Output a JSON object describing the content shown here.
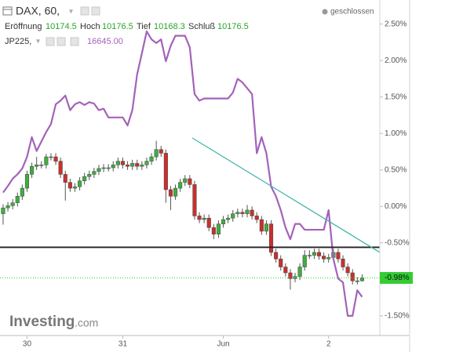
{
  "header": {
    "symbol": "DAX, 60,",
    "status": "geschlossen",
    "ohlc": [
      {
        "label": "Eröffnung",
        "value": "10174.5"
      },
      {
        "label": "Hoch",
        "value": "10176.5"
      },
      {
        "label": "Tief",
        "value": "10168.3"
      },
      {
        "label": "Schluß",
        "value": "10176.5"
      }
    ],
    "compare": {
      "symbol": "JP225,",
      "value": "16645.00"
    }
  },
  "logo": {
    "name": "Investing",
    "domain": ".com"
  },
  "chart_data": {
    "type": "candlestick",
    "xlim": [
      -0.65,
      78.7
    ],
    "xticks": [
      {
        "value": 5,
        "label": "30"
      },
      {
        "value": 25,
        "label": "31"
      },
      {
        "value": 46,
        "label": "Jun"
      },
      {
        "value": 68,
        "label": "2"
      }
    ],
    "ylim": [
      -1.77,
      2.83
    ],
    "yticks": [
      {
        "value": 2.5,
        "label": "2.50%"
      },
      {
        "value": 2.0,
        "label": "2.00%"
      },
      {
        "value": 1.5,
        "label": "1.50%"
      },
      {
        "value": 1.0,
        "label": "1.00%"
      },
      {
        "value": 0.5,
        "label": "0.50%"
      },
      {
        "value": 0.0,
        "label": "0.00%"
      },
      {
        "value": -0.5,
        "label": "-0.50%"
      },
      {
        "value": -1.5,
        "label": "-1.50%"
      }
    ],
    "grid": false,
    "up_color": "#3fae3f",
    "down_color": "#c9302c",
    "open": [
      -0.1,
      -0.02,
      0.01,
      0.05,
      0.14,
      0.25,
      0.44,
      0.55,
      0.57,
      0.57,
      0.68,
      0.68,
      0.62,
      0.44,
      0.33,
      0.25,
      0.27,
      0.35,
      0.41,
      0.44,
      0.48,
      0.52,
      0.53,
      0.53,
      0.57,
      0.62,
      0.57,
      0.55,
      0.59,
      0.55,
      0.57,
      0.62,
      0.68,
      0.78,
      0.73,
      0.23,
      0.14,
      0.25,
      0.33,
      0.38,
      0.3,
      -0.13,
      -0.18,
      -0.16,
      -0.29,
      -0.38,
      -0.24,
      -0.18,
      -0.16,
      -0.1,
      -0.08,
      -0.1,
      -0.05,
      -0.13,
      -0.18,
      -0.34,
      -0.24,
      -0.63,
      -0.72,
      -0.83,
      -0.91,
      -0.99,
      -0.96,
      -0.83,
      -0.67,
      -0.67,
      -0.63,
      -0.68,
      -0.72,
      -0.7,
      -0.63,
      -0.72,
      -0.83,
      -0.91,
      -1.02,
      -1.02
    ],
    "high": [
      0.03,
      0.06,
      0.1,
      0.19,
      0.3,
      0.49,
      0.6,
      0.68,
      0.62,
      0.72,
      0.73,
      0.73,
      0.67,
      0.49,
      0.38,
      0.32,
      0.4,
      0.46,
      0.49,
      0.53,
      0.57,
      0.58,
      0.58,
      0.62,
      0.67,
      0.67,
      0.62,
      0.64,
      0.64,
      0.62,
      0.67,
      0.73,
      0.9,
      0.83,
      0.78,
      0.28,
      0.3,
      0.38,
      0.43,
      0.43,
      0.35,
      -0.08,
      -0.11,
      -0.11,
      -0.24,
      -0.19,
      -0.13,
      -0.11,
      -0.05,
      -0.03,
      -0.03,
      0.02,
      0.0,
      -0.08,
      -0.13,
      -0.19,
      -0.19,
      -0.58,
      -0.67,
      -0.78,
      -0.86,
      -0.91,
      -0.78,
      -0.6,
      -0.6,
      -0.58,
      -0.58,
      -0.63,
      -0.65,
      -0.58,
      -0.58,
      -0.67,
      -0.78,
      -0.86,
      -0.97,
      -0.93
    ],
    "low": [
      -0.25,
      -0.07,
      -0.04,
      0.0,
      0.09,
      0.2,
      0.39,
      0.5,
      0.52,
      0.52,
      0.63,
      0.57,
      0.39,
      0.08,
      0.2,
      0.2,
      0.22,
      0.3,
      0.36,
      0.39,
      0.43,
      0.47,
      0.48,
      0.48,
      0.52,
      0.52,
      0.5,
      0.5,
      0.5,
      0.5,
      0.52,
      0.57,
      0.63,
      0.68,
      0.05,
      -0.05,
      0.09,
      0.2,
      0.28,
      0.25,
      -0.18,
      -0.23,
      -0.23,
      -0.34,
      -0.45,
      -0.43,
      -0.29,
      -0.23,
      -0.21,
      -0.15,
      -0.15,
      -0.15,
      -0.18,
      -0.23,
      -0.39,
      -0.39,
      -0.68,
      -0.77,
      -0.88,
      -0.96,
      -1.14,
      -1.04,
      -1.01,
      -0.88,
      -0.72,
      -0.72,
      -0.73,
      -0.77,
      -0.77,
      -0.75,
      -0.77,
      -0.88,
      -0.96,
      -1.07,
      -1.07,
      -1.03
    ],
    "close": [
      -0.02,
      0.01,
      0.05,
      0.14,
      0.25,
      0.44,
      0.55,
      0.57,
      0.57,
      0.68,
      0.68,
      0.62,
      0.44,
      0.33,
      0.25,
      0.27,
      0.35,
      0.41,
      0.44,
      0.48,
      0.52,
      0.53,
      0.53,
      0.57,
      0.62,
      0.57,
      0.55,
      0.59,
      0.55,
      0.57,
      0.62,
      0.68,
      0.78,
      0.73,
      0.23,
      0.14,
      0.25,
      0.33,
      0.38,
      0.3,
      -0.13,
      -0.18,
      -0.16,
      -0.29,
      -0.38,
      -0.24,
      -0.18,
      -0.16,
      -0.1,
      -0.08,
      -0.1,
      -0.05,
      -0.13,
      -0.18,
      -0.34,
      -0.24,
      -0.63,
      -0.72,
      -0.83,
      -0.91,
      -0.99,
      -0.96,
      -0.83,
      -0.67,
      -0.67,
      -0.63,
      -0.68,
      -0.72,
      -0.7,
      -0.63,
      -0.72,
      -0.83,
      -0.91,
      -1.02,
      -1.02,
      -0.98
    ],
    "series": [
      {
        "name": "JP225",
        "color": "#a462ba",
        "values": [
          0.19,
          0.28,
          0.38,
          0.44,
          0.52,
          0.68,
          0.95,
          0.76,
          0.89,
          1.02,
          1.13,
          1.4,
          1.45,
          1.52,
          1.32,
          1.4,
          1.43,
          1.39,
          1.43,
          1.41,
          1.32,
          1.34,
          1.22,
          1.22,
          1.22,
          1.22,
          1.11,
          1.32,
          1.81,
          2.1,
          2.4,
          2.29,
          2.24,
          2.29,
          1.99,
          2.2,
          2.34,
          2.34,
          2.34,
          2.18,
          1.54,
          1.45,
          1.48,
          1.48,
          1.48,
          1.48,
          1.48,
          1.48,
          1.56,
          1.75,
          1.7,
          1.62,
          1.54,
          0.73,
          0.95,
          0.73,
          0.27,
          0.14,
          -0.05,
          -0.29,
          -0.45,
          -0.24,
          -0.24,
          -0.32,
          -0.32,
          -0.32,
          -0.32,
          -0.32,
          -0.05,
          -0.72,
          -0.99,
          -1.04,
          -1.5,
          -1.5,
          -1.15,
          -1.24
        ]
      }
    ],
    "horizontal_line": {
      "value": -0.56,
      "color": "#222222"
    },
    "trend_line": {
      "x": [
        39.5,
        78.7
      ],
      "y": [
        0.94,
        -0.63
      ],
      "color": "#3fb3a6"
    },
    "last_label": {
      "value": -0.98,
      "label": "-0.98%",
      "color": "#33cc33"
    }
  }
}
